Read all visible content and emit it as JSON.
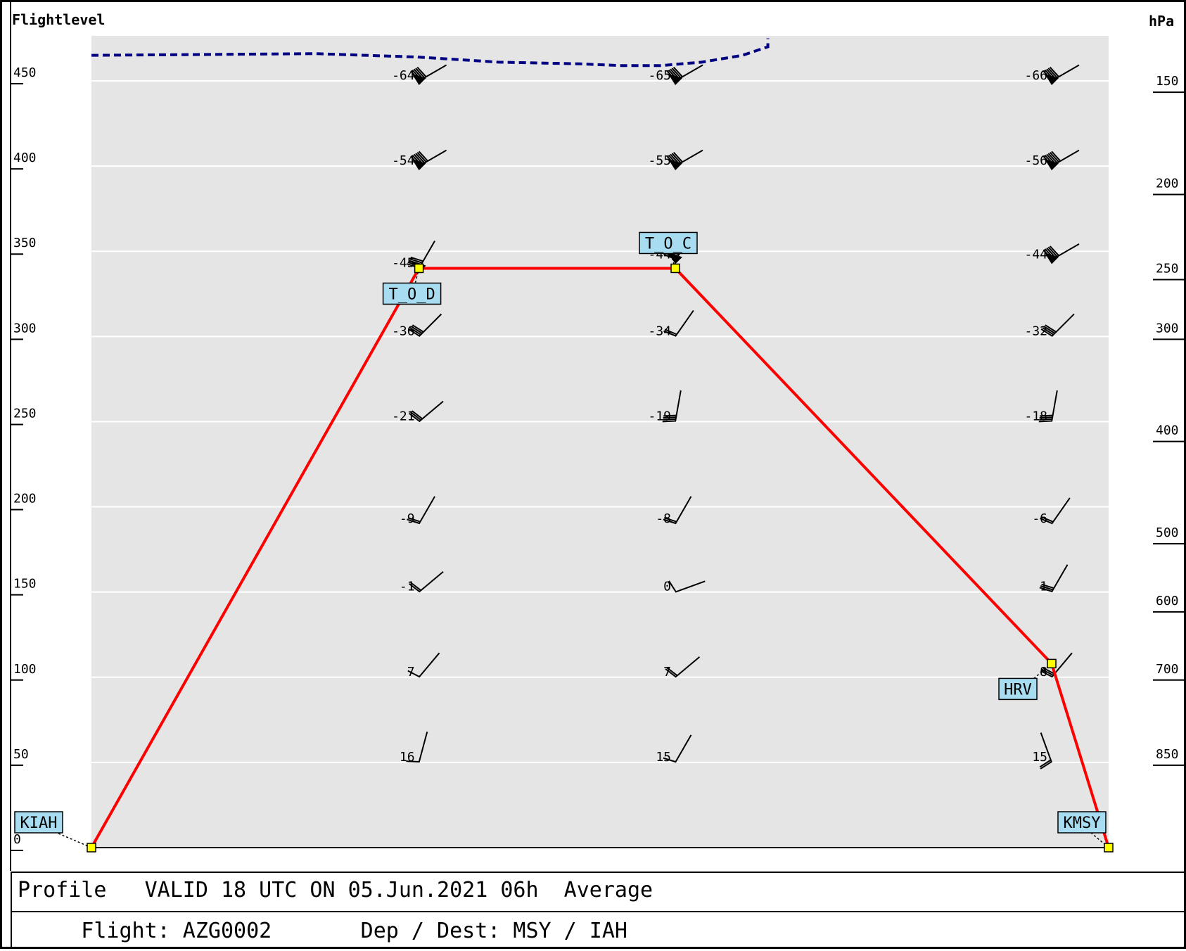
{
  "chart_data": {
    "type": "line",
    "title": "",
    "y_left_label": "Flightlevel",
    "y_right_label": "hPa",
    "y_left_ticks": [
      "0",
      "50",
      "100",
      "150",
      "200",
      "250",
      "300",
      "350",
      "400",
      "450"
    ],
    "y_right_ticks": [
      {
        "label": "150",
        "fl": 445
      },
      {
        "label": "200",
        "fl": 385
      },
      {
        "label": "250",
        "fl": 335
      },
      {
        "label": "300",
        "fl": 300
      },
      {
        "label": "400",
        "fl": 240
      },
      {
        "label": "500",
        "fl": 180
      },
      {
        "label": "600",
        "fl": 140
      },
      {
        "label": "700",
        "fl": 100
      },
      {
        "label": "850",
        "fl": 50
      }
    ],
    "ylim": [
      0,
      475
    ],
    "xlim": [
      0,
      1
    ],
    "grid": true,
    "flight_profile": {
      "color": "#ff0000",
      "points": [
        {
          "x": 0.0,
          "fl": 0
        },
        {
          "x": 0.322,
          "fl": 340
        },
        {
          "x": 0.574,
          "fl": 340
        },
        {
          "x": 0.944,
          "fl": 108
        },
        {
          "x": 1.0,
          "fl": 0
        }
      ]
    },
    "waypoints": [
      {
        "label": "KIAH",
        "x": 0.0,
        "fl": 0
      },
      {
        "label": "T_O_D",
        "x": 0.322,
        "fl": 340
      },
      {
        "label": "T_O_C",
        "x": 0.574,
        "fl": 340
      },
      {
        "label": "HRV",
        "x": 0.944,
        "fl": 108
      },
      {
        "label": "KMSY",
        "x": 1.0,
        "fl": 0
      }
    ],
    "tropopause": {
      "color": "#000080",
      "points": [
        {
          "x": 0.0,
          "fl": 465
        },
        {
          "x": 0.22,
          "fl": 466
        },
        {
          "x": 0.32,
          "fl": 464
        },
        {
          "x": 0.4,
          "fl": 461
        },
        {
          "x": 0.48,
          "fl": 460
        },
        {
          "x": 0.52,
          "fl": 459
        },
        {
          "x": 0.56,
          "fl": 459
        },
        {
          "x": 0.6,
          "fl": 461
        },
        {
          "x": 0.64,
          "fl": 465
        },
        {
          "x": 0.665,
          "fl": 470
        },
        {
          "x": 0.665,
          "fl": 475
        }
      ]
    },
    "wind_columns": [
      {
        "x": 0.322,
        "levels": [
          {
            "fl": 450,
            "temp": "-64",
            "dir": 60,
            "barbs": 5
          },
          {
            "fl": 400,
            "temp": "-54",
            "dir": 60,
            "barbs": 6
          },
          {
            "fl": 340,
            "temp": "-45",
            "dir": 30,
            "barbs": 5
          },
          {
            "fl": 300,
            "temp": "-36",
            "dir": 45,
            "barbs": 4
          },
          {
            "fl": 250,
            "temp": "-21",
            "dir": 50,
            "barbs": 3
          },
          {
            "fl": 190,
            "temp": "-9",
            "dir": 30,
            "barbs": 2
          },
          {
            "fl": 150,
            "temp": "-1",
            "dir": 50,
            "barbs": 2
          },
          {
            "fl": 100,
            "temp": "7",
            "dir": 40,
            "barbs": 1
          },
          {
            "fl": 50,
            "temp": "16",
            "dir": 15,
            "barbs": 1
          }
        ]
      },
      {
        "x": 0.574,
        "levels": [
          {
            "fl": 450,
            "temp": "-65",
            "dir": 60,
            "barbs": 5
          },
          {
            "fl": 400,
            "temp": "-55",
            "dir": 60,
            "barbs": 5
          },
          {
            "fl": 345,
            "temp": "-44",
            "dir": 35,
            "barbs": 5
          },
          {
            "fl": 300,
            "temp": "-34",
            "dir": 35,
            "barbs": 2
          },
          {
            "fl": 250,
            "temp": "-19",
            "dir": 10,
            "barbs": 4
          },
          {
            "fl": 190,
            "temp": "-8",
            "dir": 30,
            "barbs": 2
          },
          {
            "fl": 150,
            "temp": "0",
            "dir": 70,
            "barbs": 1
          },
          {
            "fl": 100,
            "temp": "7",
            "dir": 50,
            "barbs": 2
          },
          {
            "fl": 50,
            "temp": "15",
            "dir": 30,
            "barbs": 1
          }
        ]
      },
      {
        "x": 0.944,
        "levels": [
          {
            "fl": 450,
            "temp": "-66",
            "dir": 60,
            "barbs": 5
          },
          {
            "fl": 400,
            "temp": "-56",
            "dir": 60,
            "barbs": 6
          },
          {
            "fl": 345,
            "temp": "-44",
            "dir": 60,
            "barbs": 5
          },
          {
            "fl": 300,
            "temp": "-32",
            "dir": 45,
            "barbs": 4
          },
          {
            "fl": 250,
            "temp": "-18",
            "dir": 10,
            "barbs": 4
          },
          {
            "fl": 190,
            "temp": "-6",
            "dir": 35,
            "barbs": 2
          },
          {
            "fl": 150,
            "temp": "1",
            "dir": 30,
            "barbs": 3
          },
          {
            "fl": 100,
            "temp": "8",
            "dir": 40,
            "barbs": 3
          },
          {
            "fl": 50,
            "temp": "15",
            "dir": -20,
            "barbs": 2
          }
        ]
      }
    ]
  },
  "footer": {
    "line1": "Profile   VALID 18 UTC ON 05.Jun.2021 06h  Average",
    "line2": "     Flight: AZG0002       Dep / Dest: MSY / IAH"
  },
  "colors": {
    "plot_bg": "#e5e5e5",
    "grid": "#ffffff",
    "label_bg": "#a8dcf0",
    "marker": "#ffff00"
  }
}
